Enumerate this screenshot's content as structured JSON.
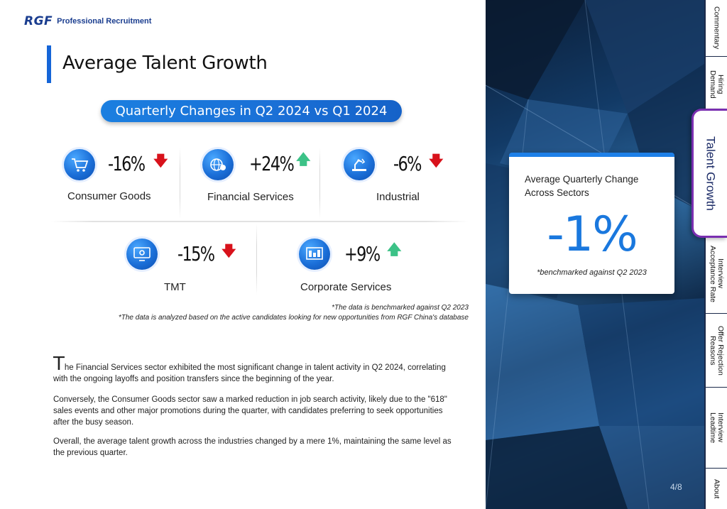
{
  "header": {
    "logo_mark": "RGF",
    "logo_text": "Professional Recruitment",
    "title": "Average Talent Growth",
    "subtitle_pill": "Quarterly Changes in Q2 2024 vs Q1 2024"
  },
  "stats": [
    {
      "label": "Consumer Goods",
      "value": "-16%",
      "direction": "down",
      "icon": "shopping-cart-icon"
    },
    {
      "label": "Financial Services",
      "value": "+24%",
      "direction": "up",
      "icon": "globe-currency-icon"
    },
    {
      "label": "Industrial",
      "value": "-6%",
      "direction": "down",
      "icon": "robot-arm-icon"
    },
    {
      "label": "TMT",
      "value": "-15%",
      "direction": "down",
      "icon": "computer-gear-icon"
    },
    {
      "label": "Corporate Services",
      "value": "+9%",
      "direction": "up",
      "icon": "dashboard-icon"
    }
  ],
  "notes": {
    "benchmark": "*The data is benchmarked against Q2 2023",
    "source": "*The data is analyzed based on the active candidates looking for new opportunities  from RGF China's database"
  },
  "body": {
    "dropcap": "T",
    "p1_rest": "he Financial Services sector exhibited the most significant change in talent activity in Q2 2024, correlating with the ongoing layoffs and position transfers since the beginning of the year.",
    "p2": "Conversely, the Consumer Goods sector saw a marked reduction in job search activity, likely due to the \"618\" sales events and other major promotions during the quarter, with candidates preferring to seek opportunities after the busy season.",
    "p3": "Overall, the average talent growth across the industries changed by a mere 1%, maintaining the same level as the previous quarter."
  },
  "callout": {
    "title": "Average Quarterly Change Across Sectors",
    "value": "-1%",
    "note": "*benchmarked against Q2 2023"
  },
  "page_number": "4/8",
  "tabs": [
    {
      "label": "Commentary",
      "active": false
    },
    {
      "label": "Hiring\nDemand",
      "active": false
    },
    {
      "label": "Talent Growth",
      "active": true
    },
    {
      "label": "Interview\nAcceptance Rate",
      "active": false
    },
    {
      "label": "Offer Rejection\nReasons",
      "active": false
    },
    {
      "label": "Interview\nLeadtime",
      "active": false
    },
    {
      "label": "About",
      "active": false
    }
  ],
  "colors": {
    "accent_blue": "#1a78de",
    "down_red": "#d8121b",
    "up_green": "#3cc287",
    "active_tab_border": "#7a2fb0"
  }
}
